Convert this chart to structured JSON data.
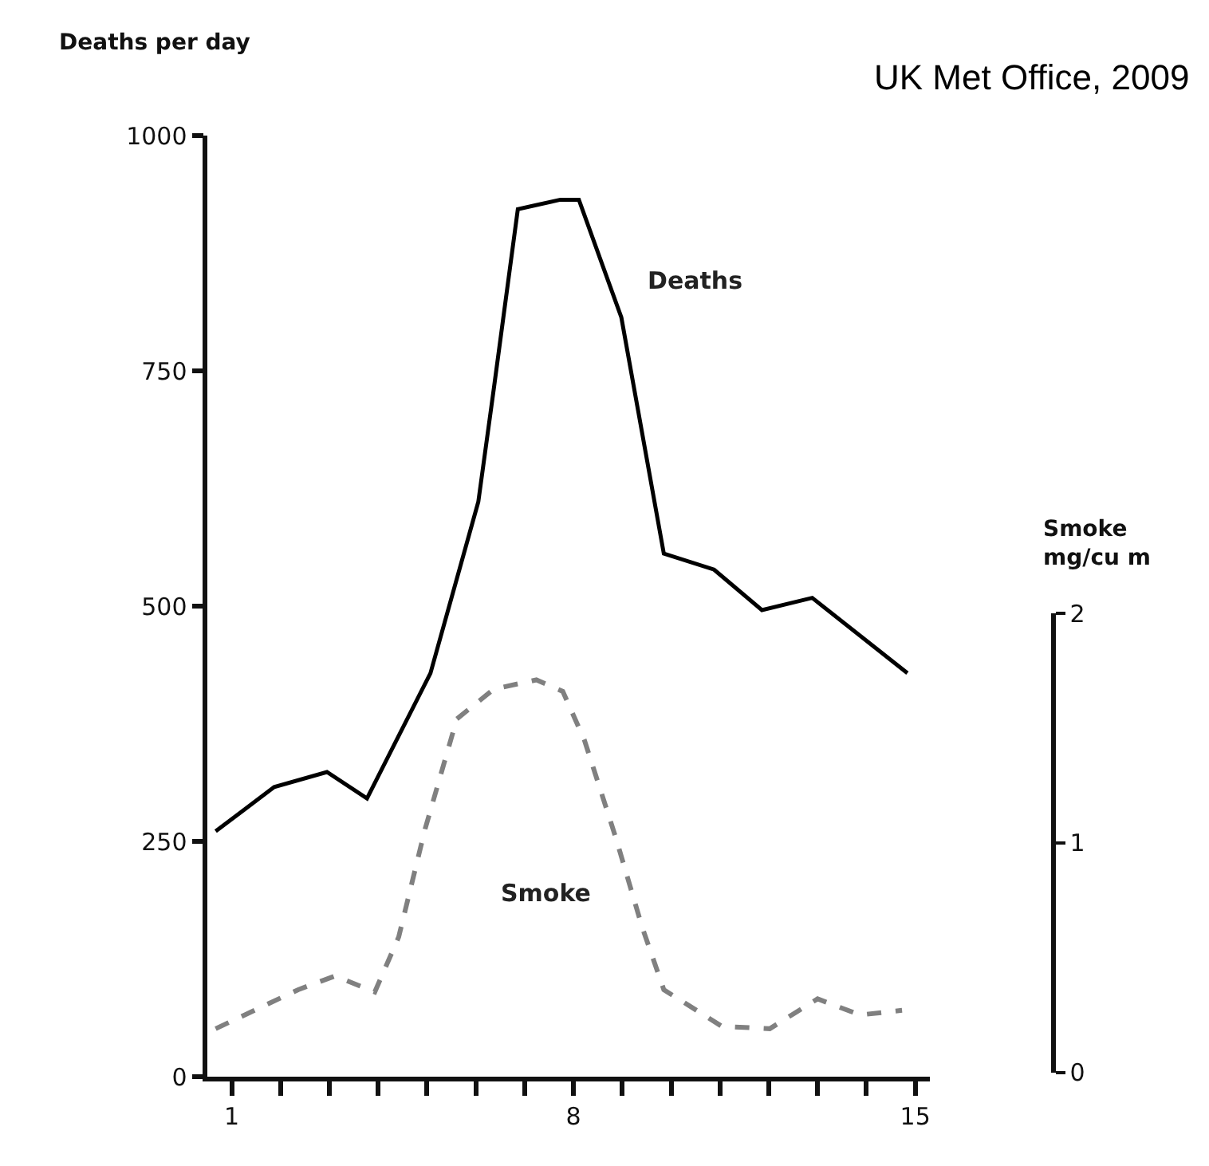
{
  "chart_data": {
    "type": "line",
    "ylabel": "Deaths per day",
    "y2label": "Smoke\nmg/cu m",
    "annotations": [
      "UK Met Office, 2009"
    ],
    "xlim": [
      0.5,
      15.3
    ],
    "xticks": [
      1,
      {
        "value": 2,
        "label": null
      },
      {
        "value": 3,
        "label": null
      },
      {
        "value": 4,
        "label": null
      },
      {
        "value": 5,
        "label": null
      },
      {
        "value": 6,
        "label": null
      },
      {
        "value": 7,
        "label": null
      },
      8,
      {
        "value": 9,
        "label": null
      },
      {
        "value": 10,
        "label": null
      },
      {
        "value": 11,
        "label": null
      },
      {
        "value": 12,
        "label": null
      },
      {
        "value": 13,
        "label": null
      },
      {
        "value": 14,
        "label": null
      },
      15
    ],
    "ylim": [
      0,
      1000
    ],
    "yticks": [
      0,
      250,
      500,
      750,
      1000
    ],
    "y2lim": [
      0,
      2
    ],
    "y2ticks": [
      0,
      1,
      2
    ],
    "legend": false,
    "grid": false,
    "marker": "none",
    "series": [
      {
        "name": "Deaths",
        "color": "#000000",
        "line_style": "solid",
        "x": [
          0.67,
          1.87,
          2.95,
          3.77,
          5.07,
          6.05,
          6.37,
          6.86,
          7.73,
          8.11,
          8.98,
          9.85,
          10.88,
          11.86,
          12.89,
          14.84
        ],
        "values": [
          261,
          308,
          324,
          296,
          429,
          611,
          732,
          922,
          932,
          932,
          807,
          556,
          539,
          496,
          509,
          429
        ]
      },
      {
        "name": "Smoke",
        "color": "#808080",
        "line_style": "dashed",
        "axis": "y2",
        "x": [
          0.67,
          2.36,
          3.12,
          3.93,
          4.42,
          4.96,
          5.61,
          6.37,
          7.24,
          7.78,
          8.22,
          8.87,
          9.41,
          9.85,
          11.04,
          12.02,
          13.0,
          13.87,
          14.73
        ],
        "values": [
          0.19,
          0.36,
          0.42,
          0.35,
          0.59,
          1.06,
          1.54,
          1.67,
          1.71,
          1.66,
          1.45,
          1.02,
          0.63,
          0.36,
          0.2,
          0.19,
          0.32,
          0.25,
          0.27
        ]
      }
    ]
  }
}
